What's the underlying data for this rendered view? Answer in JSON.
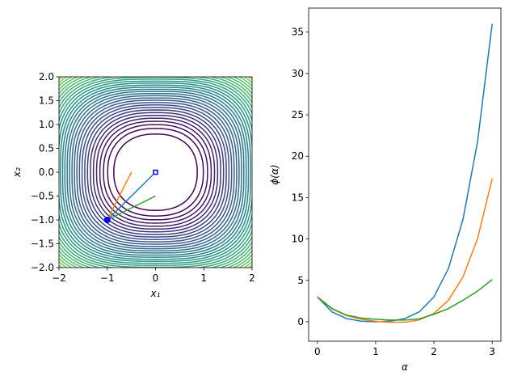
{
  "chart_data": [
    {
      "type": "line",
      "xlabel": "x₁",
      "ylabel": "x₂",
      "xlim": [
        -2,
        2
      ],
      "ylim": [
        -2,
        2
      ],
      "xticks": [
        {
          "value": -2,
          "label": "−2"
        },
        {
          "value": -1,
          "label": "−1"
        },
        0,
        1,
        2
      ],
      "yticks": [
        {
          "value": -2,
          "label": "−2.0"
        },
        {
          "value": -1.5,
          "label": "−1.5"
        },
        {
          "value": -1,
          "label": "−1.0"
        },
        {
          "value": -0.5,
          "label": "−0.5"
        },
        {
          "value": 0,
          "label": "0.0"
        },
        {
          "value": 0.5,
          "label": "0.5"
        },
        {
          "value": 1,
          "label": "1.0"
        },
        {
          "value": 1.5,
          "label": "1.5"
        },
        {
          "value": 2,
          "label": "2.0"
        }
      ],
      "contour": true,
      "series": [
        {
          "color": "#1f77b4",
          "x": [
            -1,
            0
          ],
          "values": [
            -1,
            0
          ]
        },
        {
          "color": "#ff7f0e",
          "x": [
            -1,
            -0.5
          ],
          "values": [
            -1,
            0
          ]
        },
        {
          "color": "#2ca02c",
          "x": [
            -1,
            0
          ],
          "values": [
            -1,
            -0.5
          ]
        },
        {
          "color": "#0000ff",
          "marker": "circle",
          "x": [
            -1
          ],
          "values": [
            -1
          ]
        },
        {
          "color": "#0000ff",
          "marker": "square",
          "x": [
            0
          ],
          "values": [
            0
          ]
        }
      ]
    },
    {
      "type": "line",
      "xlabel": "α",
      "ylabel": "ϕ(α)",
      "xlim": [
        -0.15,
        3.15
      ],
      "ylim": [
        -2.35,
        37.9
      ],
      "xticks": [
        0,
        1,
        2,
        3
      ],
      "yticks": [
        0,
        5,
        10,
        15,
        20,
        25,
        30,
        35
      ],
      "x": [
        0,
        0.25,
        0.5,
        0.75,
        1,
        1.25,
        1.5,
        1.75,
        2,
        2.25,
        2.5,
        2.75,
        3
      ],
      "series": [
        {
          "color": "#1f77b4",
          "values": [
            3,
            1.2,
            0.38,
            0.07,
            0,
            0.07,
            0.38,
            1.2,
            3,
            6.44,
            12.4,
            21.8,
            36
          ]
        },
        {
          "color": "#ff7f0e",
          "values": [
            3,
            1.56,
            0.75,
            0.31,
            0.06,
            -0.07,
            -0.06,
            0.22,
            1,
            2.6,
            5.44,
            10.05,
            17.3
          ]
        },
        {
          "color": "#2ca02c",
          "values": [
            3,
            1.6,
            0.8,
            0.45,
            0.3,
            0.2,
            0.2,
            0.35,
            0.9,
            1.6,
            2.6,
            3.7,
            5.1
          ]
        }
      ]
    }
  ]
}
